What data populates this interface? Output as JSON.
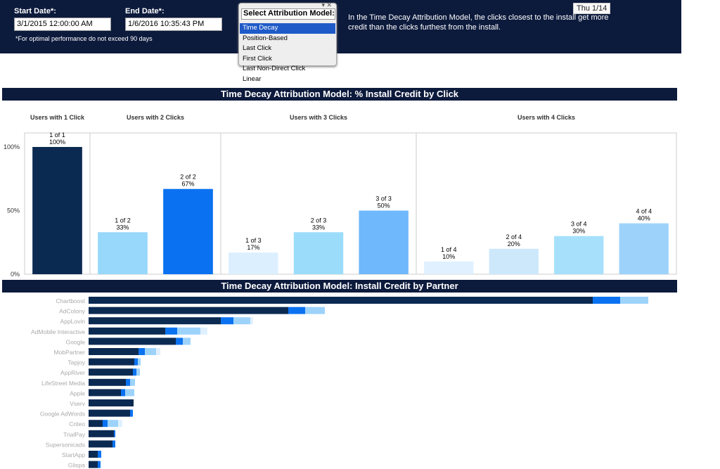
{
  "header": {
    "start_label": "Start Date*:",
    "start_value": "3/1/2015 12:00:00 AM",
    "end_label": "End Date*:",
    "end_value": "1/6/2016 10:35:43 PM",
    "note": "*For optimal performance do not exceed 90 days",
    "description": "In the Time Decay Attribution Model, the clicks closest to the install get more credit than the clicks furthest from the install.",
    "tooltip": "Thu 1/14"
  },
  "model_select": {
    "title": "Select Attribution Model:",
    "options": [
      "Time Decay",
      "Position-Based",
      "Last Click",
      "First Click",
      "Last Non-Direct Click",
      "Linear"
    ],
    "selected": "Time Decay"
  },
  "chart_data": [
    {
      "type": "bar",
      "title": "Time Decay Attribution Model: % Install Credit by Click",
      "ylim": [
        0,
        100
      ],
      "yticks": [
        "0%",
        "50%",
        "100%"
      ],
      "grid": false,
      "panels": [
        {
          "name": "Users with 1 Click",
          "bars": [
            {
              "label": "1 of 1",
              "pct": "100%",
              "value": 100,
              "color": "#0b2a52"
            }
          ]
        },
        {
          "name": "Users with 2 Clicks",
          "bars": [
            {
              "label": "1 of 2",
              "pct": "33%",
              "value": 33,
              "color": "#97d8fb"
            },
            {
              "label": "2 of 2",
              "pct": "67%",
              "value": 67,
              "color": "#0a72f0"
            }
          ]
        },
        {
          "name": "Users with 3 Clicks",
          "bars": [
            {
              "label": "1 of 3",
              "pct": "17%",
              "value": 17,
              "color": "#dcefff"
            },
            {
              "label": "2 of 3",
              "pct": "33%",
              "value": 33,
              "color": "#9bdcfb"
            },
            {
              "label": "3 of 3",
              "pct": "50%",
              "value": 50,
              "color": "#6fb8fb"
            }
          ]
        },
        {
          "name": "Users with 4 Clicks",
          "bars": [
            {
              "label": "1 of 4",
              "pct": "10%",
              "value": 10,
              "color": "#e0f0ff"
            },
            {
              "label": "2 of 4",
              "pct": "20%",
              "value": 20,
              "color": "#cde8fb"
            },
            {
              "label": "3 of 4",
              "pct": "30%",
              "value": 30,
              "color": "#a6e0fb"
            },
            {
              "label": "4 of 4",
              "pct": "40%",
              "value": 40,
              "color": "#9dd3fb"
            }
          ]
        }
      ]
    },
    {
      "type": "bar",
      "orientation": "horizontal",
      "stacked": true,
      "title": "Time Decay Attribution Model: Install Credit by Partner",
      "segment_colors": [
        "#0b2a52",
        "#0a72f0",
        "#9dd3fb",
        "#e0f0ff"
      ],
      "categories": [
        "Chartboost",
        "AdColony",
        "AppLovin",
        "AdMobile Interactive",
        "Google",
        "MobPartner",
        "Tapjoy",
        "AppRiver",
        "LifeStreet Media",
        "Apple",
        "Vserv",
        "Google AdWords",
        "Criteo",
        "TrialPay",
        "Supersonicads",
        "StartApp",
        "Glispa"
      ],
      "series": [
        [
          717,
          39,
          40,
          0
        ],
        [
          284,
          24,
          28,
          0
        ],
        [
          188,
          18,
          24,
          4
        ],
        [
          109,
          17,
          33,
          10
        ],
        [
          124,
          10,
          11,
          0
        ],
        [
          71,
          9,
          16,
          6
        ],
        [
          65,
          5,
          4,
          0
        ],
        [
          63,
          5,
          5,
          0
        ],
        [
          53,
          6,
          7,
          0
        ],
        [
          46,
          6,
          13,
          0
        ],
        [
          64,
          0,
          0,
          0
        ],
        [
          59,
          4,
          0,
          0
        ],
        [
          20,
          7,
          15,
          6
        ],
        [
          36,
          2,
          0,
          0
        ],
        [
          34,
          4,
          0,
          0
        ],
        [
          13,
          5,
          0,
          0
        ],
        [
          13,
          4,
          0,
          0
        ]
      ]
    }
  ]
}
